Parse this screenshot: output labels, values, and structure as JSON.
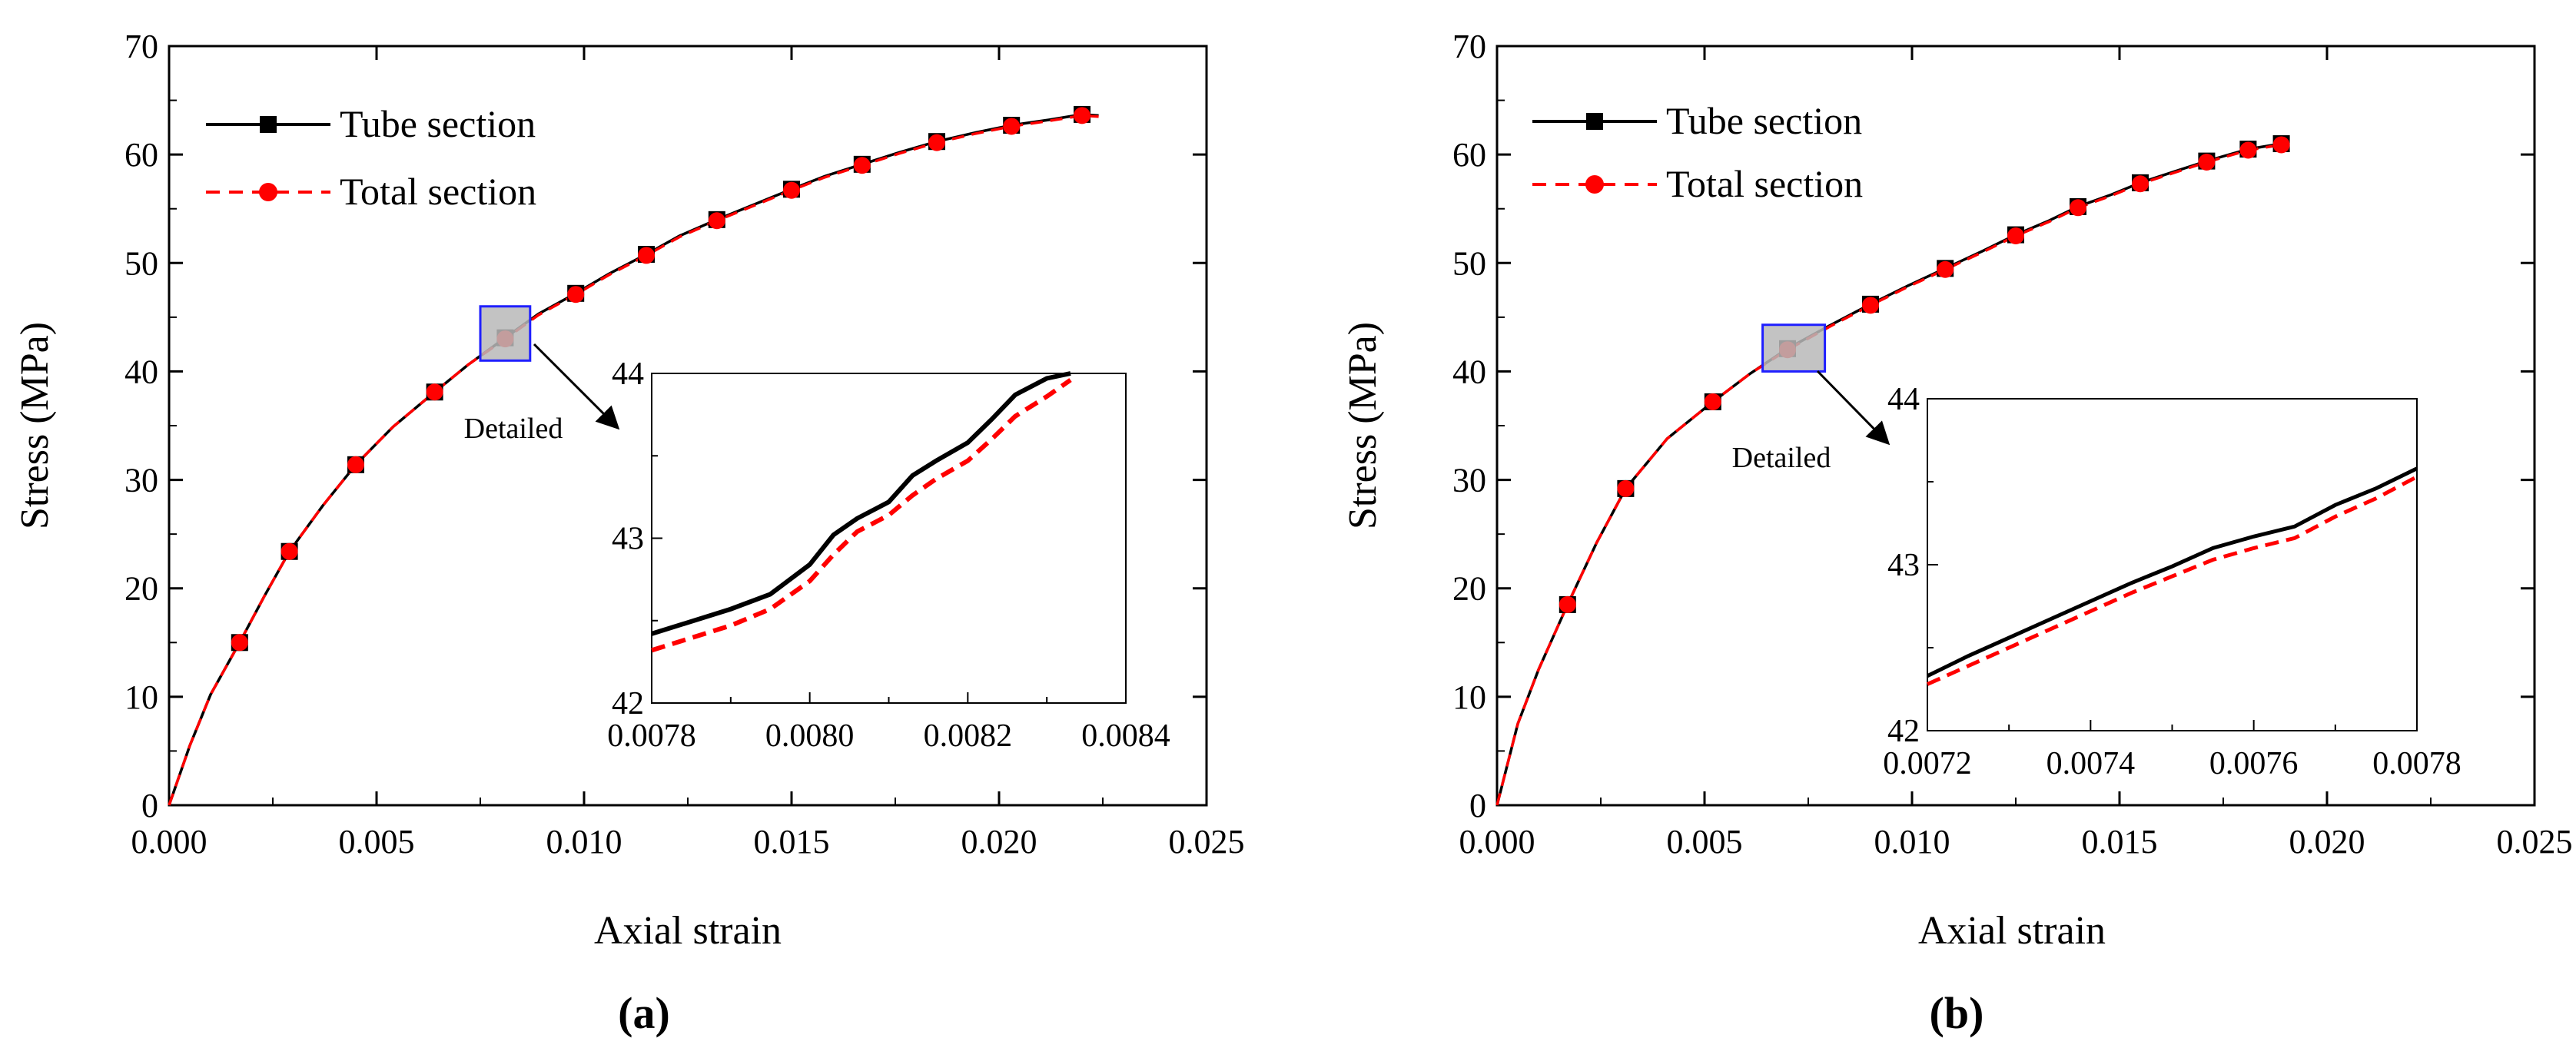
{
  "colors": {
    "tube": "#000000",
    "total": "#ff0000",
    "detail_box_fill": "#b8b8b8",
    "detail_box_stroke": "#1f1fff"
  },
  "chart_data": [
    {
      "panel_label": "(a)",
      "type": "line",
      "xlabel": "Axial strain",
      "ylabel": "Stress (MPa)",
      "xlim": [
        0,
        0.025
      ],
      "ylim": [
        0,
        70
      ],
      "xticks": [
        0,
        0.005,
        0.01,
        0.015,
        0.02,
        0.025
      ],
      "xtick_labels": [
        "0.000",
        "0.005",
        "0.010",
        "0.015",
        "0.020",
        "0.025"
      ],
      "yticks": [
        0,
        10,
        20,
        30,
        40,
        50,
        60,
        70
      ],
      "ytick_labels": [
        "0",
        "10",
        "20",
        "30",
        "40",
        "50",
        "60",
        "70"
      ],
      "legend": {
        "position": "top-left",
        "entries": [
          "Tube section",
          "Total section"
        ]
      },
      "series": [
        {
          "name": "Tube section",
          "style": "solid",
          "marker": "square",
          "color": "#000000",
          "x": [
            0,
            0.0005,
            0.001,
            0.0017,
            0.0023,
            0.0029,
            0.0037,
            0.0045,
            0.0054,
            0.0064,
            0.0072,
            0.0081,
            0.0089,
            0.0098,
            0.0106,
            0.0115,
            0.0123,
            0.0132,
            0.0141,
            0.015,
            0.0158,
            0.0167,
            0.0176,
            0.0185,
            0.0194,
            0.0203,
            0.0212,
            0.022,
            0.0224
          ],
          "y": [
            0,
            5.5,
            10.2,
            15.0,
            19.3,
            23.4,
            27.6,
            31.4,
            34.9,
            38.1,
            40.6,
            43.1,
            45.3,
            47.2,
            49.0,
            50.8,
            52.5,
            54.0,
            55.4,
            56.8,
            58.0,
            59.1,
            60.2,
            61.2,
            62.0,
            62.7,
            63.2,
            63.7,
            63.6
          ],
          "marker_x": [
            0.0017,
            0.0029,
            0.0045,
            0.0064,
            0.0081,
            0.0098,
            0.0115,
            0.0132,
            0.015,
            0.0167,
            0.0185,
            0.0203,
            0.022
          ],
          "marker_y": [
            15.0,
            23.4,
            31.4,
            38.1,
            43.1,
            47.2,
            50.8,
            54.0,
            56.8,
            59.1,
            61.2,
            62.7,
            63.7
          ]
        },
        {
          "name": "Total section",
          "style": "dashed",
          "marker": "circle",
          "color": "#ff0000",
          "x": [
            0,
            0.0005,
            0.001,
            0.0017,
            0.0023,
            0.0029,
            0.0037,
            0.0045,
            0.0054,
            0.0064,
            0.0072,
            0.0081,
            0.0089,
            0.0098,
            0.0106,
            0.0115,
            0.0123,
            0.0132,
            0.0141,
            0.015,
            0.0158,
            0.0167,
            0.0176,
            0.0185,
            0.0194,
            0.0203,
            0.0212,
            0.022,
            0.0224
          ],
          "y": [
            0,
            5.5,
            10.2,
            15.0,
            19.3,
            23.4,
            27.6,
            31.4,
            34.9,
            38.1,
            40.6,
            43.0,
            45.2,
            47.1,
            48.9,
            50.7,
            52.4,
            53.9,
            55.3,
            56.7,
            57.9,
            59.0,
            60.1,
            61.1,
            61.9,
            62.6,
            63.1,
            63.6,
            63.5
          ],
          "marker_x": [
            0.0017,
            0.0029,
            0.0045,
            0.0064,
            0.0081,
            0.0098,
            0.0115,
            0.0132,
            0.015,
            0.0167,
            0.0185,
            0.0203,
            0.022
          ],
          "marker_y": [
            15.0,
            23.4,
            31.4,
            38.1,
            43.0,
            47.1,
            50.7,
            53.9,
            56.7,
            59.0,
            61.1,
            62.6,
            63.6
          ]
        }
      ],
      "detail_box": {
        "x": [
          0.0075,
          0.0087
        ],
        "y": [
          41,
          46
        ]
      },
      "detail_label": "Detailed",
      "inset": {
        "xlim": [
          0.0078,
          0.0084
        ],
        "ylim": [
          42,
          44
        ],
        "xticks": [
          0.0078,
          0.008,
          0.0082,
          0.0084
        ],
        "xtick_labels": [
          "0.0078",
          "0.0080",
          "0.0082",
          "0.0084"
        ],
        "yticks": [
          42,
          43,
          44
        ],
        "ytick_labels": [
          "42",
          "43",
          "44"
        ],
        "series": [
          {
            "name": "Tube section",
            "style": "solid",
            "color": "#000000",
            "x": [
              0.0078,
              0.0079,
              0.00795,
              0.008,
              0.00803,
              0.00806,
              0.0081,
              0.00813,
              0.00816,
              0.0082,
              0.00823,
              0.00826,
              0.0083,
              0.00833
            ],
            "y": [
              42.42,
              42.57,
              42.66,
              42.84,
              43.02,
              43.12,
              43.22,
              43.38,
              43.47,
              43.58,
              43.72,
              43.87,
              43.97,
              44.0
            ]
          },
          {
            "name": "Total section",
            "style": "dashed",
            "color": "#ff0000",
            "x": [
              0.0078,
              0.0079,
              0.00795,
              0.008,
              0.00803,
              0.00806,
              0.0081,
              0.00813,
              0.00816,
              0.0082,
              0.00823,
              0.00826,
              0.0083,
              0.00833
            ],
            "y": [
              42.32,
              42.47,
              42.57,
              42.74,
              42.9,
              43.04,
              43.14,
              43.26,
              43.36,
              43.47,
              43.6,
              43.74,
              43.86,
              43.96
            ]
          }
        ]
      }
    },
    {
      "panel_label": "(b)",
      "type": "line",
      "xlabel": "Axial strain",
      "ylabel": "Stress (MPa)",
      "xlim": [
        0,
        0.025
      ],
      "ylim": [
        0,
        70
      ],
      "xticks": [
        0,
        0.005,
        0.01,
        0.015,
        0.02,
        0.025
      ],
      "xtick_labels": [
        "0.000",
        "0.005",
        "0.010",
        "0.015",
        "0.020",
        "0.025"
      ],
      "yticks": [
        0,
        10,
        20,
        30,
        40,
        50,
        60,
        70
      ],
      "ytick_labels": [
        "0",
        "10",
        "20",
        "30",
        "40",
        "50",
        "60",
        "70"
      ],
      "legend": {
        "position": "top-left",
        "entries": [
          "Tube section",
          "Total section"
        ]
      },
      "series": [
        {
          "name": "Tube section",
          "style": "solid",
          "marker": "square",
          "color": "#000000",
          "x": [
            0,
            0.0005,
            0.001,
            0.0017,
            0.0024,
            0.0031,
            0.0041,
            0.0052,
            0.0061,
            0.007,
            0.008,
            0.009,
            0.0099,
            0.0108,
            0.0117,
            0.0125,
            0.0133,
            0.014,
            0.0148,
            0.0155,
            0.0163,
            0.0171,
            0.0181,
            0.0189
          ],
          "y": [
            0,
            7.5,
            12.5,
            18.5,
            24.2,
            29.2,
            33.8,
            37.2,
            39.8,
            42.1,
            44.2,
            46.2,
            47.9,
            49.5,
            51.1,
            52.6,
            53.9,
            55.2,
            56.3,
            57.4,
            58.4,
            59.4,
            60.5,
            61.0
          ],
          "marker_x": [
            0.0017,
            0.0031,
            0.0052,
            0.007,
            0.009,
            0.0108,
            0.0125,
            0.014,
            0.0155,
            0.0171,
            0.0181,
            0.0189
          ],
          "marker_y": [
            18.5,
            29.2,
            37.2,
            42.1,
            46.2,
            49.5,
            52.6,
            55.2,
            57.4,
            59.4,
            60.5,
            61.0
          ]
        },
        {
          "name": "Total section",
          "style": "dashed",
          "marker": "circle",
          "color": "#ff0000",
          "x": [
            0,
            0.0005,
            0.001,
            0.0017,
            0.0024,
            0.0031,
            0.0041,
            0.0052,
            0.0061,
            0.007,
            0.008,
            0.009,
            0.0099,
            0.0108,
            0.0117,
            0.0125,
            0.0133,
            0.014,
            0.0148,
            0.0155,
            0.0163,
            0.0171,
            0.0181,
            0.0189
          ],
          "y": [
            0,
            7.5,
            12.5,
            18.5,
            24.2,
            29.2,
            33.8,
            37.2,
            39.8,
            42.0,
            44.1,
            46.1,
            47.8,
            49.4,
            51.0,
            52.5,
            53.8,
            55.1,
            56.2,
            57.3,
            58.3,
            59.3,
            60.4,
            60.9
          ],
          "marker_x": [
            0.0017,
            0.0031,
            0.0052,
            0.007,
            0.009,
            0.0108,
            0.0125,
            0.014,
            0.0155,
            0.0171,
            0.0181,
            0.0189
          ],
          "marker_y": [
            18.5,
            29.2,
            37.2,
            42.0,
            46.1,
            49.4,
            52.5,
            55.1,
            57.3,
            59.3,
            60.4,
            60.9
          ]
        }
      ],
      "detail_box": {
        "x": [
          0.0064,
          0.0079
        ],
        "y": [
          40,
          44.3
        ]
      },
      "detail_label": "Detailed",
      "inset": {
        "xlim": [
          0.0072,
          0.0078
        ],
        "ylim": [
          42,
          44
        ],
        "xticks": [
          0.0072,
          0.0074,
          0.0076,
          0.0078
        ],
        "xtick_labels": [
          "0.0072",
          "0.0074",
          "0.0076",
          "0.0078"
        ],
        "yticks": [
          42,
          43,
          44
        ],
        "ytick_labels": [
          "42",
          "43",
          "44"
        ],
        "series": [
          {
            "name": "Tube section",
            "style": "solid",
            "color": "#000000",
            "x": [
              0.0072,
              0.00725,
              0.0073,
              0.00735,
              0.0074,
              0.00745,
              0.0075,
              0.00755,
              0.0076,
              0.00765,
              0.0077,
              0.00775,
              0.0078
            ],
            "y": [
              42.33,
              42.45,
              42.56,
              42.67,
              42.78,
              42.89,
              42.99,
              43.1,
              43.17,
              43.23,
              43.36,
              43.46,
              43.58
            ]
          },
          {
            "name": "Total section",
            "style": "dashed",
            "color": "#ff0000",
            "x": [
              0.0072,
              0.00725,
              0.0073,
              0.00735,
              0.0074,
              0.00745,
              0.0075,
              0.00755,
              0.0076,
              0.00765,
              0.0077,
              0.00775,
              0.0078
            ],
            "y": [
              42.28,
              42.39,
              42.5,
              42.61,
              42.72,
              42.83,
              42.93,
              43.03,
              43.1,
              43.16,
              43.29,
              43.4,
              43.53
            ]
          }
        ]
      }
    }
  ]
}
